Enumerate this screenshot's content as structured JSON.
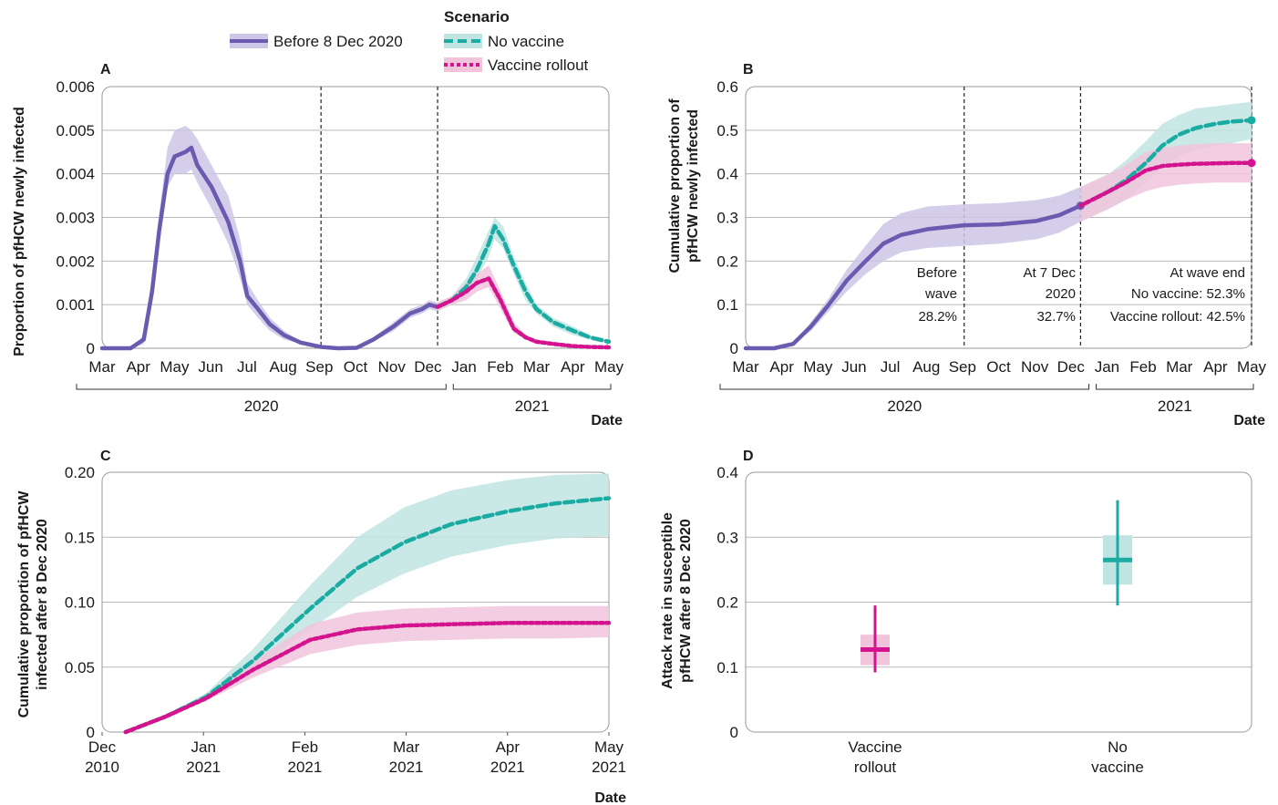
{
  "legend": {
    "title": "Scenario",
    "items": [
      {
        "label": "Before 8 Dec 2020",
        "color": "#6b5bb0",
        "band": "#cdc6e6",
        "dash": ""
      },
      {
        "label": "No vaccine",
        "color": "#1aaba3",
        "band": "#bfe4e2",
        "dash": "10 5"
      },
      {
        "label": "Vaccine rollout",
        "color": "#d4148f",
        "band": "#f1c4dc",
        "dash": "4 3"
      }
    ]
  },
  "colors": {
    "before": "#6b5bb0",
    "no_vaccine": "#1aaba3",
    "vaccine": "#d4148f"
  },
  "panels": {
    "A": {
      "label": "A",
      "ylabel": "Proportion of pfHCW newly infected",
      "xlabel": "Date"
    },
    "B": {
      "label": "B",
      "ylabel": [
        "Cumulative proportion of",
        "pfHCW newly infected"
      ],
      "xlabel": "Date"
    },
    "C": {
      "label": "C",
      "ylabel": [
        "Cumulative proportion of pfHCW",
        "infected after 8 Dec 2020"
      ],
      "xlabel": "Date"
    },
    "D": {
      "label": "D",
      "ylabel": [
        "Attack rate in susceptible",
        "pfHCW after 8 Dec 2020"
      ]
    }
  },
  "annotations_B": {
    "before_wave": [
      "Before",
      "wave",
      "28.2%"
    ],
    "at_7_dec": [
      "At 7 Dec",
      "2020",
      "32.7%"
    ],
    "wave_end": [
      "At wave end",
      "No vaccine: 52.3%",
      "Vaccine rollout: 42.5%"
    ]
  },
  "chart_data": [
    {
      "panel": "A",
      "type": "line",
      "ylabel": "Proportion of pfHCW newly infected",
      "xlabel": "Date",
      "x_tick_labels": [
        "Mar",
        "Apr",
        "May",
        "Jun",
        "Jul",
        "Aug",
        "Sep",
        "Oct",
        "Nov",
        "Dec",
        "Jan",
        "Feb",
        "Mar",
        "Apr",
        "May"
      ],
      "x_year_labels": [
        "2020",
        "2021"
      ],
      "y_ticks": [
        "0",
        "0.001",
        "0.002",
        "0.003",
        "0.004",
        "0.005",
        "0.006"
      ],
      "ylim": [
        0,
        0.006
      ],
      "grid": true,
      "vlines": [
        "2020-09-01",
        "2020-12-08"
      ],
      "series": [
        {
          "name": "Before 8 Dec 2020",
          "x": [
            "2020-03-01",
            "2020-03-25",
            "2020-04-05",
            "2020-04-12",
            "2020-04-18",
            "2020-04-25",
            "2020-05-01",
            "2020-05-10",
            "2020-05-15",
            "2020-05-20",
            "2020-06-01",
            "2020-06-15",
            "2020-06-25",
            "2020-07-01",
            "2020-07-10",
            "2020-07-20",
            "2020-08-01",
            "2020-08-15",
            "2020-09-01",
            "2020-09-15",
            "2020-10-01",
            "2020-10-15",
            "2020-11-01",
            "2020-11-15",
            "2020-11-25",
            "2020-12-01",
            "2020-12-08"
          ],
          "y": [
            0,
            0,
            0.0002,
            0.0013,
            0.0027,
            0.004,
            0.0044,
            0.0045,
            0.0046,
            0.0042,
            0.0037,
            0.0029,
            0.002,
            0.0012,
            0.0009,
            0.00055,
            0.0003,
            0.00013,
            3e-05,
            0,
            1e-05,
            0.0002,
            0.0005,
            0.0008,
            0.0009,
            0.001,
            0.00095
          ],
          "lower": [
            0,
            0,
            0.0001,
            0.0011,
            0.0024,
            0.0037,
            0.004,
            0.004,
            0.0041,
            0.0038,
            0.0032,
            0.0024,
            0.0016,
            0.001,
            0.0007,
            0.0004,
            0.0002,
            0.0001,
            2e-05,
            0,
            0,
            0.00015,
            0.0004,
            0.0007,
            0.0008,
            0.0009,
            0.00085
          ],
          "upper": [
            0,
            0,
            0.0003,
            0.0016,
            0.0031,
            0.0046,
            0.005,
            0.0051,
            0.005,
            0.0048,
            0.0042,
            0.0035,
            0.0025,
            0.0015,
            0.0011,
            0.0007,
            0.0004,
            0.00016,
            4e-05,
            1e-05,
            2e-05,
            0.00025,
            0.0006,
            0.0009,
            0.001,
            0.0011,
            0.00105
          ]
        },
        {
          "name": "No vaccine",
          "x": [
            "2020-12-08",
            "2020-12-20",
            "2021-01-01",
            "2021-01-10",
            "2021-01-20",
            "2021-01-25",
            "2021-02-01",
            "2021-02-10",
            "2021-02-20",
            "2021-03-01",
            "2021-03-15",
            "2021-04-01",
            "2021-04-15",
            "2021-05-01"
          ],
          "y": [
            0.00095,
            0.0011,
            0.0014,
            0.0018,
            0.0024,
            0.0028,
            0.0025,
            0.0019,
            0.0013,
            0.0009,
            0.0006,
            0.0004,
            0.00025,
            0.00015
          ],
          "lower": [
            0.00085,
            0.001,
            0.0012,
            0.0016,
            0.0021,
            0.0025,
            0.0023,
            0.0017,
            0.0011,
            0.0008,
            0.0005,
            0.0003,
            0.0002,
            0.0001
          ],
          "upper": [
            0.00105,
            0.0012,
            0.0016,
            0.0021,
            0.0027,
            0.003,
            0.0028,
            0.0021,
            0.0015,
            0.001,
            0.0007,
            0.0005,
            0.0003,
            0.0002
          ]
        },
        {
          "name": "Vaccine rollout",
          "x": [
            "2020-12-08",
            "2020-12-20",
            "2021-01-01",
            "2021-01-10",
            "2021-01-20",
            "2021-01-30",
            "2021-02-10",
            "2021-02-20",
            "2021-03-01",
            "2021-03-15",
            "2021-04-01",
            "2021-04-15",
            "2021-05-01"
          ],
          "y": [
            0.00095,
            0.0011,
            0.0013,
            0.0015,
            0.0016,
            0.0011,
            0.00045,
            0.00025,
            0.00015,
            0.0001,
            5e-05,
            3e-05,
            2e-05
          ],
          "lower": [
            0.00085,
            0.001,
            0.0011,
            0.0013,
            0.0014,
            0.0009,
            0.00035,
            0.0002,
            0.0001,
            7e-05,
            3e-05,
            2e-05,
            1e-05
          ],
          "upper": [
            0.00105,
            0.0012,
            0.0015,
            0.0017,
            0.0019,
            0.0013,
            0.0006,
            0.0003,
            0.0002,
            0.00013,
            7e-05,
            4e-05,
            3e-05
          ]
        }
      ]
    },
    {
      "panel": "B",
      "type": "line",
      "ylabel": "Cumulative proportion of pfHCW newly infected",
      "xlabel": "Date",
      "x_tick_labels": [
        "Mar",
        "Apr",
        "May",
        "Jun",
        "Jul",
        "Aug",
        "Sep",
        "Oct",
        "Nov",
        "Dec",
        "Jan",
        "Feb",
        "Mar",
        "Apr",
        "May"
      ],
      "x_year_labels": [
        "2020",
        "2021"
      ],
      "y_ticks": [
        "0",
        "0.1",
        "0.2",
        "0.3",
        "0.4",
        "0.5",
        "0.6"
      ],
      "ylim": [
        0,
        0.6
      ],
      "grid": true,
      "vlines": [
        "2020-09-01",
        "2020-12-08",
        "2021-05-01"
      ],
      "series": [
        {
          "name": "Before 8 Dec 2020",
          "x": [
            "2020-03-01",
            "2020-03-25",
            "2020-04-10",
            "2020-04-25",
            "2020-05-10",
            "2020-05-25",
            "2020-06-10",
            "2020-06-25",
            "2020-07-10",
            "2020-08-01",
            "2020-09-01",
            "2020-10-01",
            "2020-11-01",
            "2020-11-20",
            "2020-12-08"
          ],
          "y": [
            0,
            0,
            0.01,
            0.05,
            0.1,
            0.155,
            0.2,
            0.24,
            0.26,
            0.273,
            0.282,
            0.284,
            0.292,
            0.305,
            0.327
          ],
          "lower": [
            0,
            0,
            0.008,
            0.04,
            0.085,
            0.13,
            0.17,
            0.2,
            0.22,
            0.23,
            0.235,
            0.24,
            0.25,
            0.265,
            0.29
          ],
          "upper": [
            0,
            0,
            0.012,
            0.06,
            0.115,
            0.18,
            0.235,
            0.285,
            0.31,
            0.325,
            0.33,
            0.333,
            0.34,
            0.35,
            0.37
          ]
        },
        {
          "name": "No vaccine",
          "x": [
            "2020-12-08",
            "2021-01-01",
            "2021-01-15",
            "2021-02-01",
            "2021-02-15",
            "2021-03-01",
            "2021-03-15",
            "2021-04-01",
            "2021-04-15",
            "2021-05-01"
          ],
          "y": [
            0.327,
            0.36,
            0.385,
            0.425,
            0.465,
            0.49,
            0.505,
            0.515,
            0.52,
            0.523
          ],
          "lower": [
            0.29,
            0.32,
            0.34,
            0.38,
            0.415,
            0.44,
            0.455,
            0.465,
            0.47,
            0.48
          ],
          "upper": [
            0.37,
            0.4,
            0.43,
            0.475,
            0.515,
            0.535,
            0.55,
            0.555,
            0.56,
            0.565
          ]
        },
        {
          "name": "Vaccine rollout",
          "x": [
            "2020-12-08",
            "2021-01-01",
            "2021-01-15",
            "2021-02-01",
            "2021-02-15",
            "2021-03-01",
            "2021-03-15",
            "2021-04-01",
            "2021-04-15",
            "2021-05-01"
          ],
          "y": [
            0.327,
            0.36,
            0.38,
            0.408,
            0.418,
            0.421,
            0.423,
            0.424,
            0.425,
            0.425
          ],
          "lower": [
            0.29,
            0.32,
            0.34,
            0.36,
            0.37,
            0.375,
            0.378,
            0.38,
            0.38,
            0.38
          ],
          "upper": [
            0.37,
            0.4,
            0.42,
            0.45,
            0.46,
            0.465,
            0.468,
            0.47,
            0.47,
            0.47
          ]
        }
      ]
    },
    {
      "panel": "C",
      "type": "line",
      "ylabel": "Cumulative proportion of pfHCW infected after 8 Dec 2020",
      "xlabel": "Date",
      "x_tick_labels": [
        [
          "Dec",
          "2010"
        ],
        [
          "Jan",
          "2021"
        ],
        [
          "Feb",
          "2021"
        ],
        [
          "Mar",
          "2021"
        ],
        [
          "Apr",
          "2021"
        ],
        [
          "May",
          "2021"
        ]
      ],
      "y_ticks": [
        "0",
        "0.05",
        "0.10",
        "0.15",
        "0.20"
      ],
      "ylim": [
        0,
        0.2
      ],
      "grid": true,
      "series": [
        {
          "name": "No vaccine",
          "x": [
            "2020-12-08",
            "2020-12-20",
            "2021-01-01",
            "2021-01-15",
            "2021-02-01",
            "2021-02-15",
            "2021-03-01",
            "2021-03-15",
            "2021-04-01",
            "2021-04-15",
            "2021-05-01"
          ],
          "y": [
            0,
            0.012,
            0.027,
            0.055,
            0.095,
            0.126,
            0.146,
            0.16,
            0.17,
            0.176,
            0.18
          ],
          "lower": [
            0,
            0.011,
            0.024,
            0.047,
            0.079,
            0.104,
            0.122,
            0.135,
            0.144,
            0.149,
            0.151
          ],
          "upper": [
            0,
            0.013,
            0.03,
            0.064,
            0.113,
            0.15,
            0.173,
            0.186,
            0.194,
            0.198,
            0.199
          ]
        },
        {
          "name": "Vaccine rollout",
          "x": [
            "2020-12-08",
            "2020-12-20",
            "2021-01-01",
            "2021-01-15",
            "2021-02-01",
            "2021-02-15",
            "2021-03-01",
            "2021-03-15",
            "2021-04-01",
            "2021-04-15",
            "2021-05-01"
          ],
          "y": [
            0,
            0.012,
            0.026,
            0.048,
            0.071,
            0.079,
            0.082,
            0.083,
            0.084,
            0.084,
            0.084
          ],
          "lower": [
            0,
            0.011,
            0.024,
            0.042,
            0.06,
            0.067,
            0.07,
            0.071,
            0.072,
            0.072,
            0.073
          ],
          "upper": [
            0,
            0.013,
            0.029,
            0.055,
            0.083,
            0.092,
            0.095,
            0.096,
            0.097,
            0.097,
            0.097
          ]
        }
      ]
    },
    {
      "panel": "D",
      "type": "boxplot",
      "ylabel": "Attack rate in susceptible pfHCW after 8 Dec 2020",
      "categories": [
        [
          "Vaccine",
          "rollout"
        ],
        [
          "No",
          "vaccine"
        ]
      ],
      "y_ticks": [
        "0",
        "0.1",
        "0.2",
        "0.3",
        "0.4"
      ],
      "ylim": [
        0,
        0.4
      ],
      "grid": true,
      "series": [
        {
          "name": "Vaccine rollout",
          "median": 0.127,
          "q1": 0.103,
          "q3": 0.15,
          "min": 0.092,
          "max": 0.195
        },
        {
          "name": "No vaccine",
          "median": 0.265,
          "q1": 0.227,
          "q3": 0.303,
          "min": 0.195,
          "max": 0.357
        }
      ]
    }
  ]
}
